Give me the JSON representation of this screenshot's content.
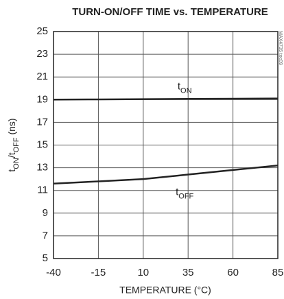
{
  "chart_data": {
    "type": "line",
    "title": "TURN-ON/OFF TIME vs. TEMPERATURE",
    "xlabel": "TEMPERATURE (°C)",
    "ylabel_parts": [
      {
        "text": "t"
      },
      {
        "text": "ON",
        "sub": true
      },
      {
        "text": "/t"
      },
      {
        "text": "OFF",
        "sub": true
      },
      {
        "text": " (ns)"
      }
    ],
    "side_note": "MAX4735 toc09",
    "x": [
      -40,
      -15,
      10,
      35,
      60,
      85
    ],
    "series": [
      {
        "color": "#222222",
        "values": [
          19.0,
          19.02,
          19.04,
          19.06,
          19.08,
          19.1
        ],
        "label_parts": [
          {
            "text": "t"
          },
          {
            "text": "ON",
            "sub": true
          }
        ]
      },
      {
        "color": "#222222",
        "values": [
          11.6,
          11.8,
          12.0,
          12.4,
          12.8,
          13.2
        ],
        "label_parts": [
          {
            "text": "t"
          },
          {
            "text": "OFF",
            "sub": true
          }
        ]
      }
    ],
    "xlim": [
      -40,
      85
    ],
    "xticks": [
      -40,
      -15,
      10,
      35,
      60,
      85
    ],
    "ylim": [
      5,
      25
    ],
    "yticks": [
      5,
      7,
      9,
      11,
      13,
      15,
      17,
      19,
      21,
      23,
      25
    ],
    "grid": true
  }
}
